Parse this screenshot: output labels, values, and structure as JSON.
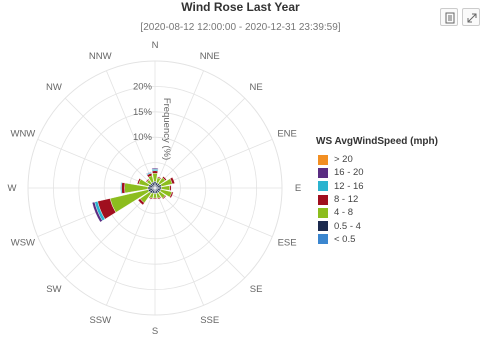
{
  "chart_data": {
    "type": "windrose",
    "title": "Wind Rose Last Year",
    "subtitle": "[2020-08-12 12:00:00 - 2020-12-31 23:39:59]",
    "radial_axis_label": "Frequency (%)",
    "radial_ticks": [
      "10%",
      "15%",
      "20%"
    ],
    "radial_max": 25,
    "directions": [
      "N",
      "NNE",
      "NE",
      "ENE",
      "E",
      "ESE",
      "SE",
      "SSE",
      "S",
      "SSW",
      "SW",
      "WSW",
      "W",
      "WNW",
      "NW",
      "NNW"
    ],
    "legend_title": "WS AvgWindSpeed (mph)",
    "legend_position": "right",
    "series": [
      {
        "name": "> 20",
        "color": "#f28f22",
        "values": [
          0,
          0,
          0,
          0,
          0,
          0,
          0,
          0,
          0,
          0,
          0,
          0,
          0,
          0,
          0,
          0
        ]
      },
      {
        "name": "16 - 20",
        "color": "#5a2d82",
        "values": [
          0.2,
          0,
          0,
          0,
          0,
          0,
          0,
          0,
          0,
          0,
          0,
          0.5,
          0,
          0,
          0,
          0.1
        ]
      },
      {
        "name": "12 - 16",
        "color": "#2bb3cf",
        "values": [
          0.3,
          0,
          0,
          0,
          0,
          0,
          0,
          0,
          0,
          0,
          0,
          0.6,
          0.2,
          0,
          0,
          0.2
        ]
      },
      {
        "name": "8 - 12",
        "color": "#a00f1e",
        "values": [
          0.5,
          0.2,
          0.3,
          0.5,
          0.3,
          0.3,
          0.2,
          0.2,
          0.2,
          0.2,
          0.5,
          2.5,
          0.6,
          0.3,
          0.2,
          0.5
        ]
      },
      {
        "name": "4 - 8",
        "color": "#8cbd1e",
        "values": [
          1.6,
          1.0,
          1.4,
          2.2,
          1.6,
          2.2,
          1.4,
          1.0,
          0.9,
          1.0,
          2.3,
          7.7,
          4.6,
          2.0,
          0.9,
          1.3
        ]
      },
      {
        "name": "0.5 - 4",
        "color": "#1c2a4e",
        "values": [
          1.2,
          1.0,
          1.0,
          1.2,
          1.2,
          1.1,
          1.0,
          1.0,
          1.0,
          1.0,
          1.2,
          1.3,
          1.3,
          1.2,
          1.0,
          1.1
        ]
      },
      {
        "name": "< 0.5",
        "color": "#3b86cf",
        "values": [
          0.1,
          0.1,
          0.1,
          0.1,
          0.1,
          0.1,
          0.1,
          0.1,
          0.1,
          0.1,
          0.1,
          0.1,
          0.1,
          0.1,
          0.1,
          0.1
        ]
      }
    ]
  },
  "grid_color": "#e3e3e3"
}
